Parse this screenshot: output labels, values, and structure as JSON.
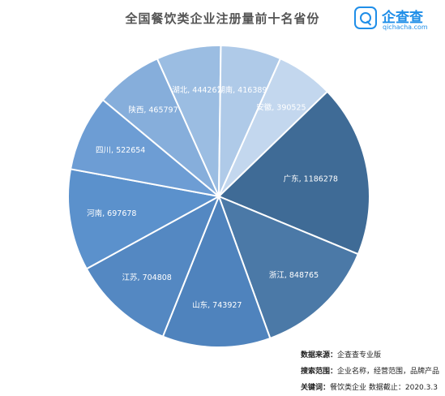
{
  "title": "全国餐饮类企业注册量前十名省份",
  "logo": {
    "name": "企查查",
    "url": "qichacha.com"
  },
  "notes": [
    {
      "key": "数据来源：",
      "value": "企查查专业版"
    },
    {
      "key": "搜索范围：",
      "value": "企业名称，经营范围，品牌产品"
    },
    {
      "key": "关键词：",
      "value": "餐饮类企业  数据截止：2020.3.3"
    }
  ],
  "chart_data": {
    "type": "pie",
    "title": "全国餐饮类企业注册量前十名省份",
    "label_separator": ", ",
    "slices": [
      {
        "name": "广东",
        "value": 1186278,
        "color": "#3f6b96"
      },
      {
        "name": "浙江",
        "value": 848765,
        "color": "#4b79a7"
      },
      {
        "name": "山东",
        "value": 743927,
        "color": "#4f83bd"
      },
      {
        "name": "江苏",
        "value": 704808,
        "color": "#5488c2"
      },
      {
        "name": "河南",
        "value": 697678,
        "color": "#5b91cc"
      },
      {
        "name": "四川",
        "value": 522654,
        "color": "#6d9dd4"
      },
      {
        "name": "陕西",
        "value": 465797,
        "color": "#86aedb"
      },
      {
        "name": "湖北",
        "value": 444267,
        "color": "#9bbde2"
      },
      {
        "name": "湖南",
        "value": 416389,
        "color": "#afcae8"
      },
      {
        "name": "安徽",
        "value": 390525,
        "color": "#c3d7ee"
      }
    ]
  }
}
